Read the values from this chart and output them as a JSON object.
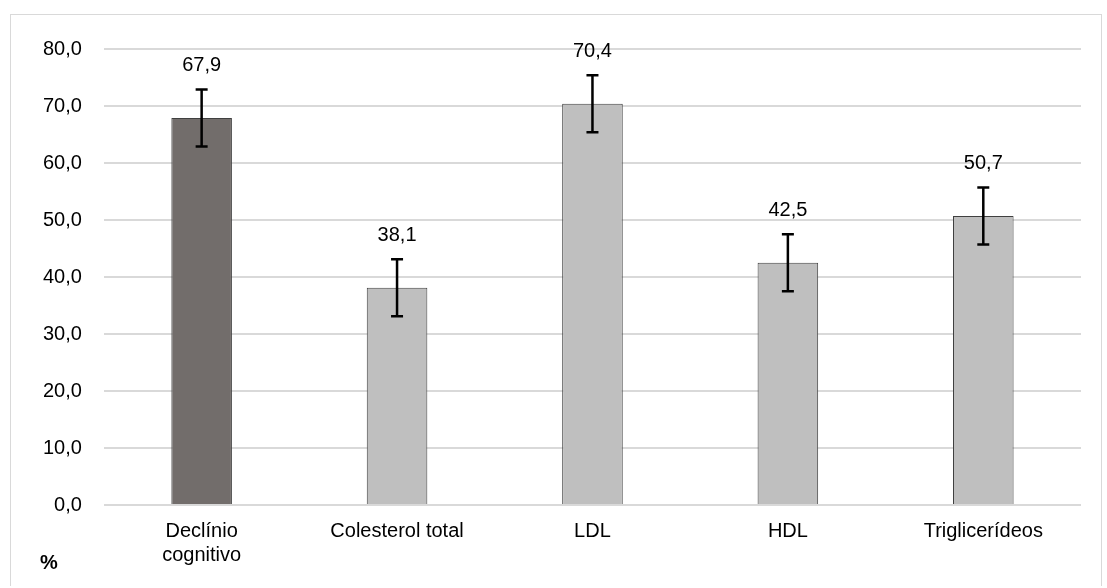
{
  "chart_data": {
    "type": "bar",
    "ylabel": "%",
    "categories": [
      "Declínio cognitivo",
      "Colesterol total",
      "LDL",
      "HDL",
      "Triglicerídeos"
    ],
    "values": [
      67.9,
      38.1,
      70.4,
      42.5,
      50.7
    ],
    "colors": [
      "#726d6b",
      "#bfbfbf",
      "#bfbfbf",
      "#bfbfbf",
      "#bfbfbf"
    ],
    "errors": [
      5,
      5,
      5,
      5,
      5
    ],
    "value_labels": [
      "67,9",
      "38,1",
      "70,4",
      "42,5",
      "50,7"
    ],
    "ylim": [
      0,
      80
    ],
    "yticks": [
      {
        "value": 0,
        "label": "0,0"
      },
      {
        "value": 10,
        "label": "10,0"
      },
      {
        "value": 20,
        "label": "20,0"
      },
      {
        "value": 30,
        "label": "30,0"
      },
      {
        "value": 40,
        "label": "40,0"
      },
      {
        "value": 50,
        "label": "50,0"
      },
      {
        "value": 60,
        "label": "60,0"
      },
      {
        "value": 70,
        "label": "70,0"
      },
      {
        "value": 80,
        "label": "80,0"
      }
    ],
    "grid": "y",
    "legend": false
  }
}
